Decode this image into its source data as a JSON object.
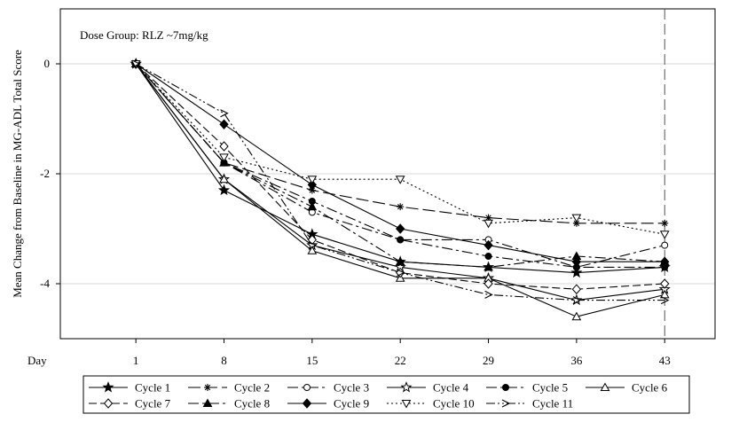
{
  "chart_data": {
    "type": "line",
    "annotation": "Dose Group: RLZ ~7mg/kg",
    "xlabel": "Day",
    "ylabel": "Mean Change from Baseline in MG-ADL Total Score",
    "x": [
      1,
      8,
      15,
      22,
      29,
      36,
      43
    ],
    "xlim": [
      -5,
      47
    ],
    "ylim": [
      -5,
      1
    ],
    "yticks": [
      0,
      -2,
      -4
    ],
    "reference_line_x": 43,
    "grid": "horizontal",
    "legend_position": "bottom",
    "series": [
      {
        "name": "Cycle 1",
        "marker": "star",
        "dash": "",
        "values": [
          0,
          -2.3,
          -3.1,
          -3.6,
          -3.7,
          -3.8,
          -3.7
        ]
      },
      {
        "name": "Cycle 2",
        "marker": "asterisk",
        "dash": "14 5",
        "values": [
          0,
          -1.8,
          -2.3,
          -2.6,
          -2.8,
          -2.9,
          -2.9
        ]
      },
      {
        "name": "Cycle 3",
        "marker": "circle-open",
        "dash": "12 4 3 4",
        "values": [
          0,
          -1.8,
          -2.7,
          -3.2,
          -3.2,
          -3.7,
          -3.3
        ]
      },
      {
        "name": "Cycle 4",
        "marker": "star-open",
        "dash": "",
        "values": [
          0,
          -2.1,
          -3.3,
          -3.7,
          -3.9,
          -4.3,
          -4.1
        ]
      },
      {
        "name": "Cycle 5",
        "marker": "circle",
        "dash": "12 4 3 4",
        "values": [
          0,
          -1.8,
          -2.5,
          -3.2,
          -3.5,
          -3.7,
          -3.7
        ]
      },
      {
        "name": "Cycle 6",
        "marker": "triangle-open",
        "dash": "",
        "values": [
          0,
          -2.1,
          -3.4,
          -3.9,
          -3.9,
          -4.6,
          -4.2
        ]
      },
      {
        "name": "Cycle 7",
        "marker": "diamond-open",
        "dash": "9 4",
        "values": [
          0,
          -1.5,
          -3.2,
          -3.8,
          -4.0,
          -4.1,
          -4.0
        ]
      },
      {
        "name": "Cycle 8",
        "marker": "triangle",
        "dash": "12 4 3 4",
        "values": [
          0,
          -1.8,
          -2.6,
          -3.6,
          -3.7,
          -3.5,
          -3.6
        ]
      },
      {
        "name": "Cycle 9",
        "marker": "diamond",
        "dash": "",
        "values": [
          0,
          -1.1,
          -2.2,
          -3.0,
          -3.3,
          -3.6,
          -3.6
        ]
      },
      {
        "name": "Cycle 10",
        "marker": "triangle-down-open",
        "dash": "2 3",
        "values": [
          0,
          -1.7,
          -2.1,
          -2.1,
          -2.9,
          -2.8,
          -3.1
        ]
      },
      {
        "name": "Cycle 11",
        "marker": "chevron",
        "dash": "10 3 2 3 2 3",
        "values": [
          0,
          -0.9,
          -3.3,
          -3.8,
          -4.2,
          -4.3,
          -4.3
        ]
      }
    ]
  }
}
